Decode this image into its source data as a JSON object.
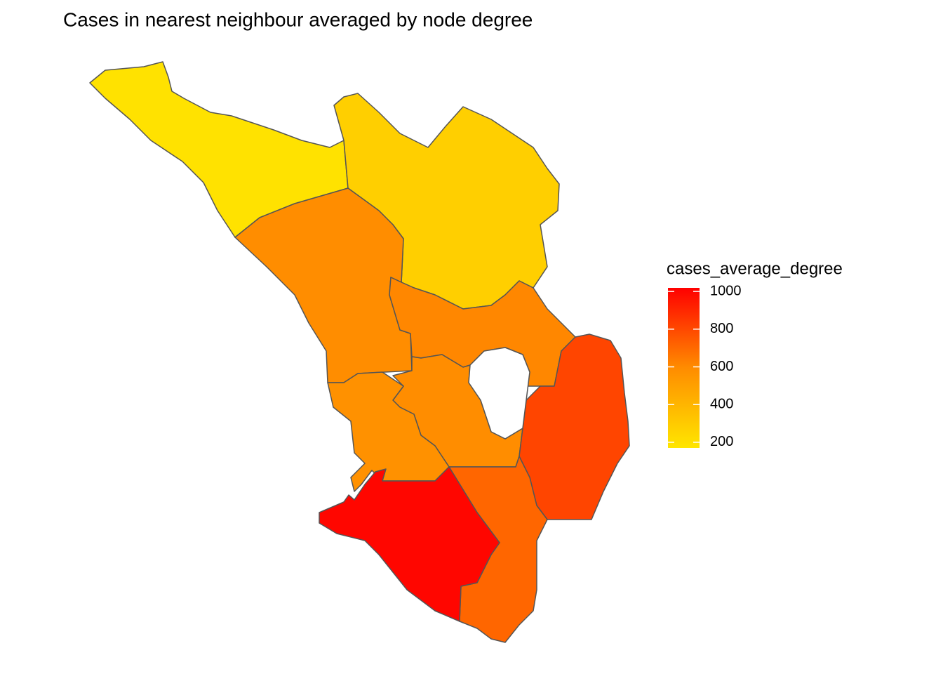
{
  "chart_data": {
    "type": "choropleth",
    "title": "Cases in nearest neighbour averaged by node degree",
    "legend_title": "cases_average_degree",
    "colors": [
      "#ffe600",
      "#ff8c00",
      "#ff0000"
    ],
    "clim": [
      170,
      1019
    ],
    "cticks": [
      200,
      400,
      600,
      800,
      1000
    ],
    "values": [
      190,
      280,
      590,
      610,
      590,
      570,
      810,
      710,
      1000
    ]
  }
}
